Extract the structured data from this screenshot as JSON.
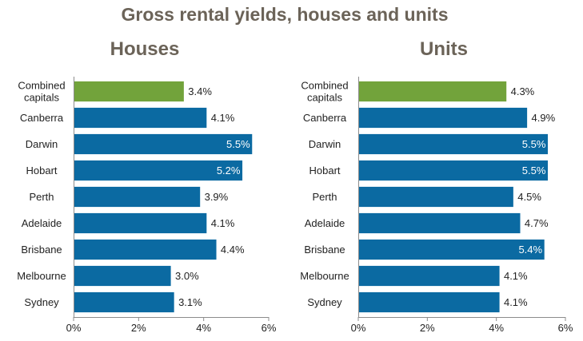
{
  "title": "Gross rental yields, houses and units",
  "colors": {
    "highlight": "#72a33b",
    "bar": "#0b6aa2",
    "title": "#6b6358"
  },
  "chart_data": [
    {
      "type": "bar",
      "orientation": "horizontal",
      "title": "Houses",
      "categories": [
        "Combined capitals",
        "Canberra",
        "Darwin",
        "Hobart",
        "Perth",
        "Adelaide",
        "Brisbane",
        "Melbourne",
        "Sydney"
      ],
      "values": [
        3.4,
        4.1,
        5.5,
        5.2,
        3.9,
        4.1,
        4.4,
        3.0,
        3.1
      ],
      "value_labels": [
        "3.4%",
        "4.1%",
        "5.5%",
        "5.2%",
        "3.9%",
        "4.1%",
        "4.4%",
        "3.0%",
        "3.1%"
      ],
      "xlim": [
        0,
        6
      ],
      "ticks": [
        0,
        2,
        4,
        6
      ],
      "tick_labels": [
        "0%",
        "2%",
        "4%",
        "6%"
      ],
      "highlight_category": "Combined capitals",
      "grid": false,
      "legend": "none"
    },
    {
      "type": "bar",
      "orientation": "horizontal",
      "title": "Units",
      "categories": [
        "Combined capitals",
        "Canberra",
        "Darwin",
        "Hobart",
        "Perth",
        "Adelaide",
        "Brisbane",
        "Melbourne",
        "Sydney"
      ],
      "values": [
        4.3,
        4.9,
        5.5,
        5.5,
        4.5,
        4.7,
        5.4,
        4.1,
        4.1
      ],
      "value_labels": [
        "4.3%",
        "4.9%",
        "5.5%",
        "5.5%",
        "4.5%",
        "4.7%",
        "5.4%",
        "4.1%",
        "4.1%"
      ],
      "xlim": [
        0,
        6
      ],
      "ticks": [
        0,
        2,
        4,
        6
      ],
      "tick_labels": [
        "0%",
        "2%",
        "4%",
        "6%"
      ],
      "highlight_category": "Combined capitals",
      "grid": false,
      "legend": "none"
    }
  ]
}
